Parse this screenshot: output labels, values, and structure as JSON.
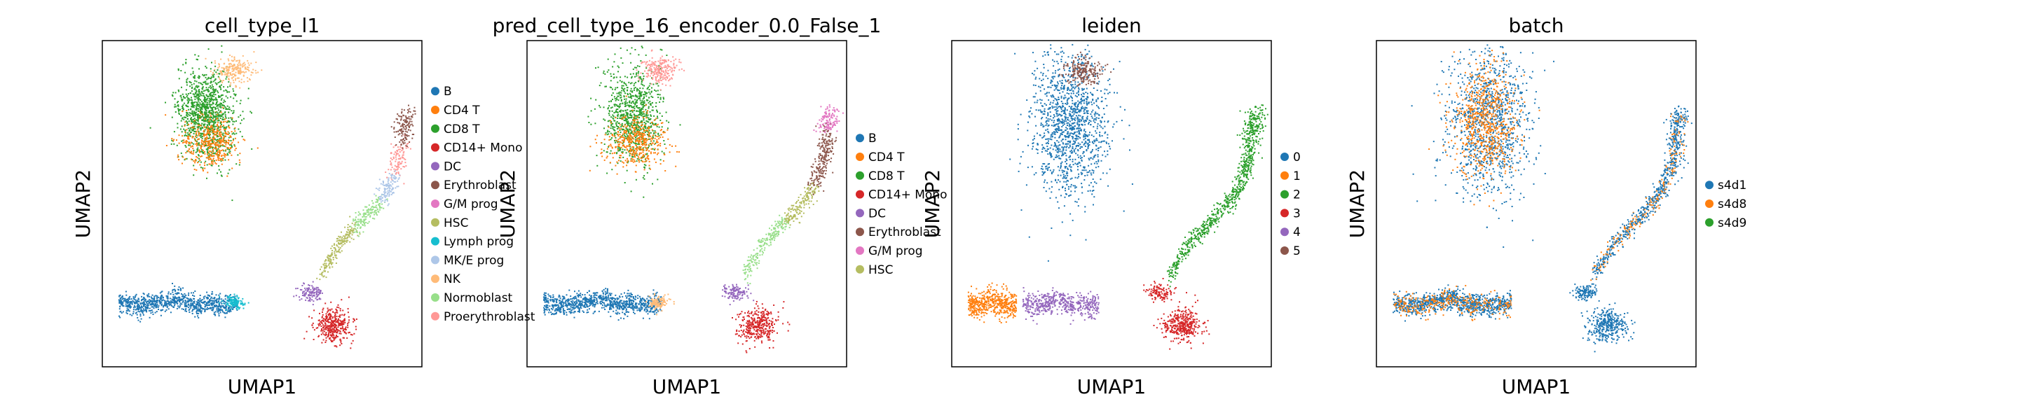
{
  "figure": {
    "type": "umap_panels"
  },
  "colors": {
    "c0": "#1f77b4",
    "c1": "#ff7f0e",
    "c2": "#2ca02c",
    "c3": "#d62728",
    "c4": "#9467bd",
    "c5": "#8c564b",
    "c6": "#e377c2",
    "c7": "#b5bd61",
    "c8": "#17becf",
    "c9": "#aec7e8",
    "c10": "#ffbb78",
    "c11": "#98df8a",
    "c12": "#ff9896"
  },
  "chart_data": [
    {
      "type": "scatter",
      "title": "cell_type_l1",
      "xlabel": "UMAP1",
      "ylabel": "UMAP2",
      "grid": false,
      "legend_position": "right-outside",
      "legend": [
        "B",
        "CD4 T",
        "CD8 T",
        "CD14+ Mono",
        "DC",
        "Erythroblast",
        "G/M prog",
        "HSC",
        "Lymph prog",
        "MK/E prog",
        "NK",
        "Normoblast",
        "Proerythroblast"
      ],
      "legend_colors": [
        "#1f77b4",
        "#ff7f0e",
        "#2ca02c",
        "#d62728",
        "#9467bd",
        "#8c564b",
        "#e377c2",
        "#b5bd61",
        "#17becf",
        "#aec7e8",
        "#ffbb78",
        "#98df8a",
        "#ff9896"
      ]
    },
    {
      "type": "scatter",
      "title": "pred_cell_type_16_encoder_0.0_False_1",
      "xlabel": "UMAP1",
      "ylabel": "UMAP2",
      "grid": false,
      "legend_position": "right-outside",
      "legend": [
        "B",
        "CD4 T",
        "CD8 T",
        "CD14+ Mono",
        "DC",
        "Erythroblast",
        "G/M prog",
        "HSC"
      ],
      "legend_colors": [
        "#1f77b4",
        "#ff7f0e",
        "#2ca02c",
        "#d62728",
        "#9467bd",
        "#8c564b",
        "#e377c2",
        "#b5bd61"
      ]
    },
    {
      "type": "scatter",
      "title": "leiden",
      "xlabel": "UMAP1",
      "ylabel": "UMAP2",
      "grid": false,
      "legend_position": "right-outside",
      "legend": [
        "0",
        "1",
        "2",
        "3",
        "4",
        "5"
      ],
      "legend_colors": [
        "#1f77b4",
        "#ff7f0e",
        "#2ca02c",
        "#d62728",
        "#9467bd",
        "#8c564b"
      ]
    },
    {
      "type": "scatter",
      "title": "batch",
      "xlabel": "UMAP1",
      "ylabel": "UMAP2",
      "grid": false,
      "legend_position": "right-outside",
      "legend": [
        "s4d1",
        "s4d8",
        "s4d9"
      ],
      "legend_colors": [
        "#1f77b4",
        "#ff7f0e",
        "#2ca02c"
      ]
    }
  ]
}
